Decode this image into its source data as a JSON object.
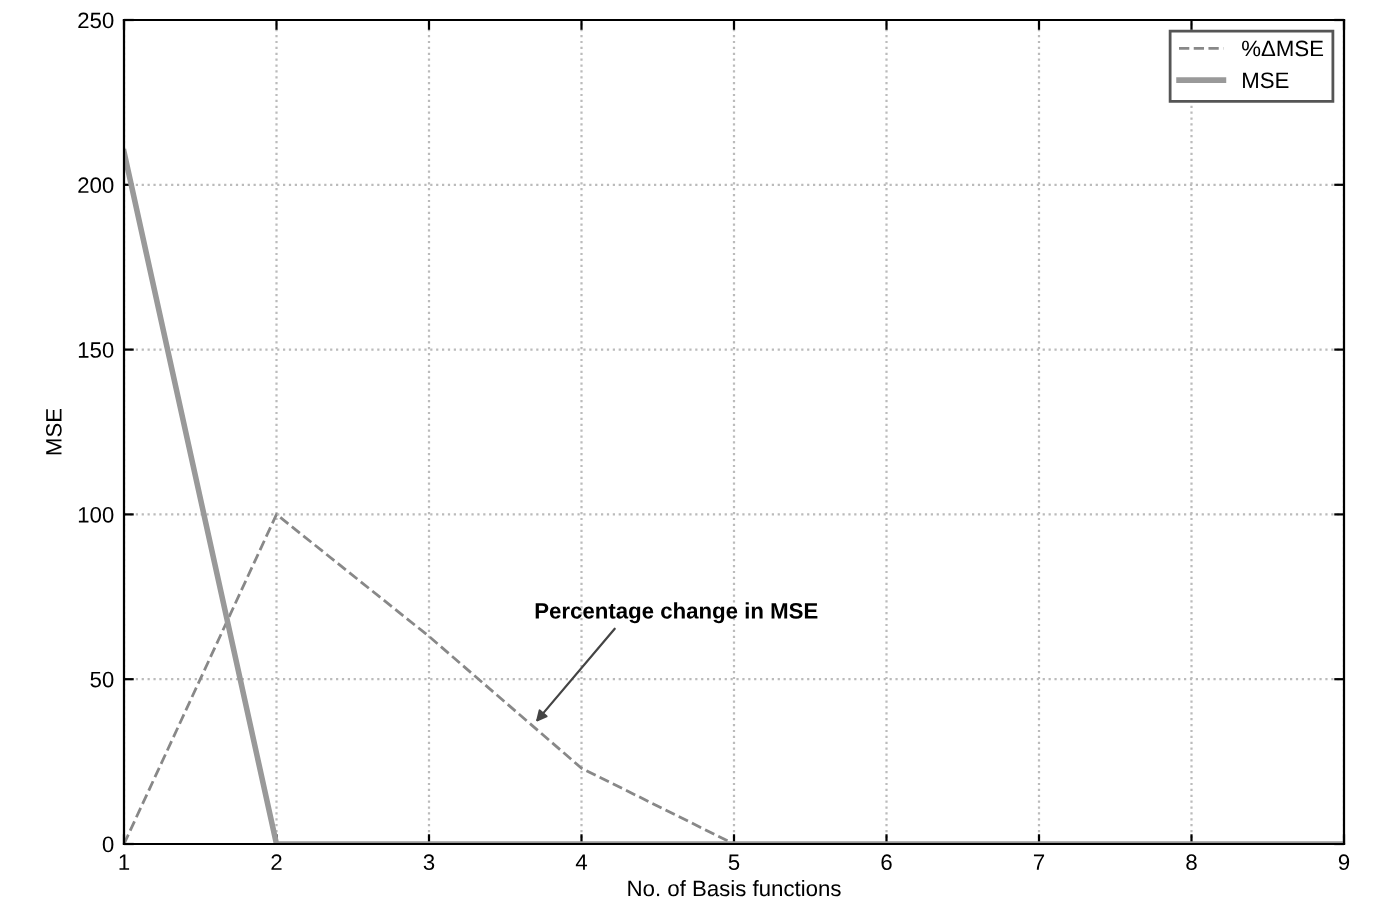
{
  "chart_data": {
    "type": "line",
    "xlabel": "No. of Basis functions",
    "ylabel": "MSE",
    "series": [
      {
        "name": "%ΔMSE",
        "color": "#888888",
        "line_style": "dashed",
        "x": [
          1,
          2,
          3,
          4,
          5
        ],
        "values": [
          0,
          100,
          63,
          23,
          0
        ]
      },
      {
        "name": "MSE",
        "color": "#999999",
        "line_style": "solid",
        "x": [
          1,
          2,
          3,
          4,
          5,
          6,
          7,
          8,
          9
        ],
        "values": [
          210,
          0,
          0,
          0,
          0,
          0,
          0,
          0,
          0
        ]
      }
    ],
    "xlim": [
      1,
      9
    ],
    "xticks": [
      1,
      2,
      3,
      4,
      5,
      6,
      7,
      8,
      9
    ],
    "ylim": [
      0,
      250
    ],
    "yticks": [
      0,
      50,
      100,
      150,
      200,
      250
    ],
    "grid": true,
    "legend": "top right",
    "annotations": [
      {
        "text": "Percentage change in MSE",
        "x": 3.7,
        "y": 37
      }
    ]
  }
}
